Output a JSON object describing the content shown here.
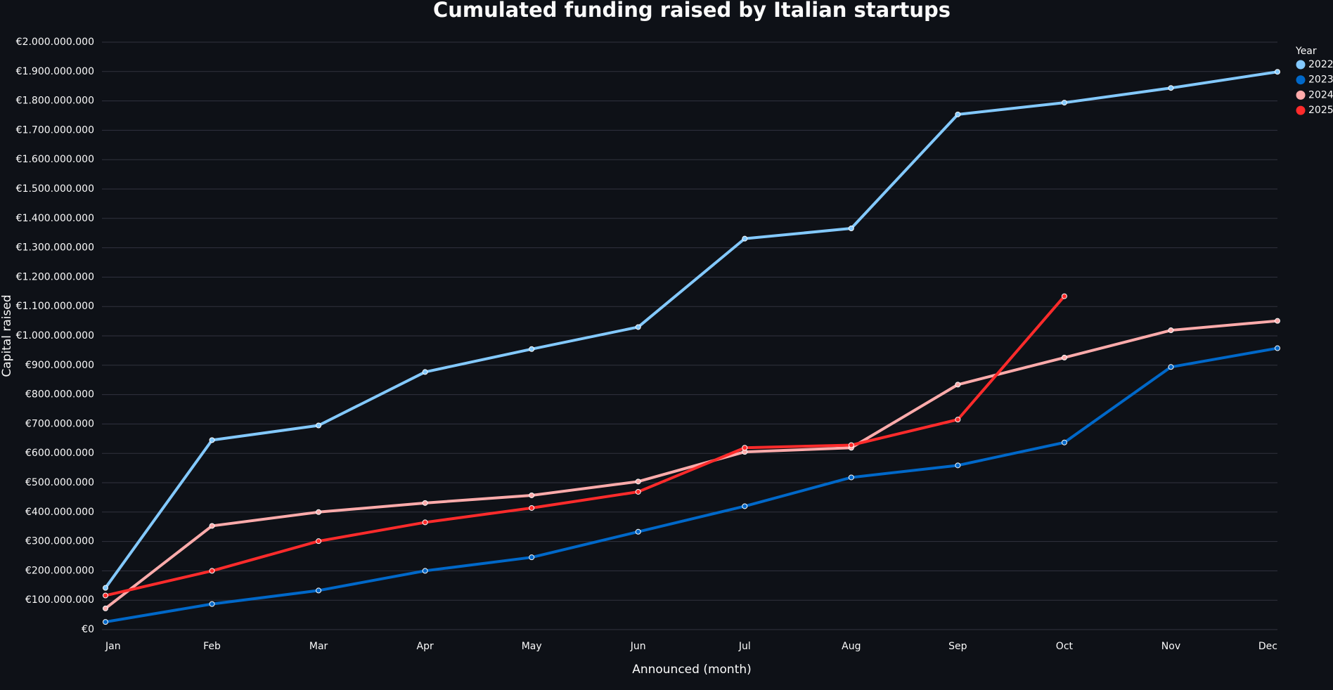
{
  "chart_data": {
    "type": "line",
    "title": "Cumulated funding raised by Italian startups",
    "x_label": "Announced (month)",
    "y_label": "Capital raised",
    "legend_title": "Year",
    "legend": "top-right",
    "grid": true,
    "categories": [
      "Jan",
      "Feb",
      "Mar",
      "Apr",
      "May",
      "Jun",
      "Jul",
      "Aug",
      "Sep",
      "Oct",
      "Nov",
      "Dec"
    ],
    "series": [
      {
        "name": "2022",
        "color": "#83c9ff",
        "values": [
          142000000,
          645000000,
          695000000,
          877000000,
          955000000,
          1030000000,
          1331000000,
          1366000000,
          1754000000,
          1794000000,
          1844000000,
          1899000000
        ]
      },
      {
        "name": "2023",
        "color": "#0068c9",
        "values": [
          26000000,
          87000000,
          133000000,
          200000000,
          246000000,
          333000000,
          420000000,
          518000000,
          559000000,
          637000000,
          894000000,
          958000000
        ]
      },
      {
        "name": "2024",
        "color": "#ffabab",
        "values": [
          72000000,
          353000000,
          400000000,
          431000000,
          457000000,
          504000000,
          605000000,
          619000000,
          834000000,
          926000000,
          1019000000,
          1051000000
        ]
      },
      {
        "name": "2025",
        "color": "#ff2b2b",
        "values": [
          116000000,
          200000000,
          301000000,
          365000000,
          414000000,
          469000000,
          619000000,
          628000000,
          715000000,
          1135000000,
          null,
          null
        ]
      }
    ],
    "ylim": [
      0,
      2000000000
    ],
    "yticks": [
      {
        "value": 0,
        "label": "€0"
      },
      {
        "value": 100000000,
        "label": "€100.000.000"
      },
      {
        "value": 200000000,
        "label": "€200.000.000"
      },
      {
        "value": 300000000,
        "label": "€300.000.000"
      },
      {
        "value": 400000000,
        "label": "€400.000.000"
      },
      {
        "value": 500000000,
        "label": "€500.000.000"
      },
      {
        "value": 600000000,
        "label": "€600.000.000"
      },
      {
        "value": 700000000,
        "label": "€700.000.000"
      },
      {
        "value": 800000000,
        "label": "€800.000.000"
      },
      {
        "value": 900000000,
        "label": "€900.000.000"
      },
      {
        "value": 1000000000,
        "label": "€1.000.000.000"
      },
      {
        "value": 1100000000,
        "label": "€1.100.000.000"
      },
      {
        "value": 1200000000,
        "label": "€1.200.000.000"
      },
      {
        "value": 1300000000,
        "label": "€1.300.000.000"
      },
      {
        "value": 1400000000,
        "label": "€1.400.000.000"
      },
      {
        "value": 1500000000,
        "label": "€1.500.000.000"
      },
      {
        "value": 1600000000,
        "label": "€1.600.000.000"
      },
      {
        "value": 1700000000,
        "label": "€1.700.000.000"
      },
      {
        "value": 1800000000,
        "label": "€1.800.000.000"
      },
      {
        "value": 1900000000,
        "label": "€1.900.000.000"
      },
      {
        "value": 2000000000,
        "label": "€2.000.000.000"
      }
    ]
  }
}
